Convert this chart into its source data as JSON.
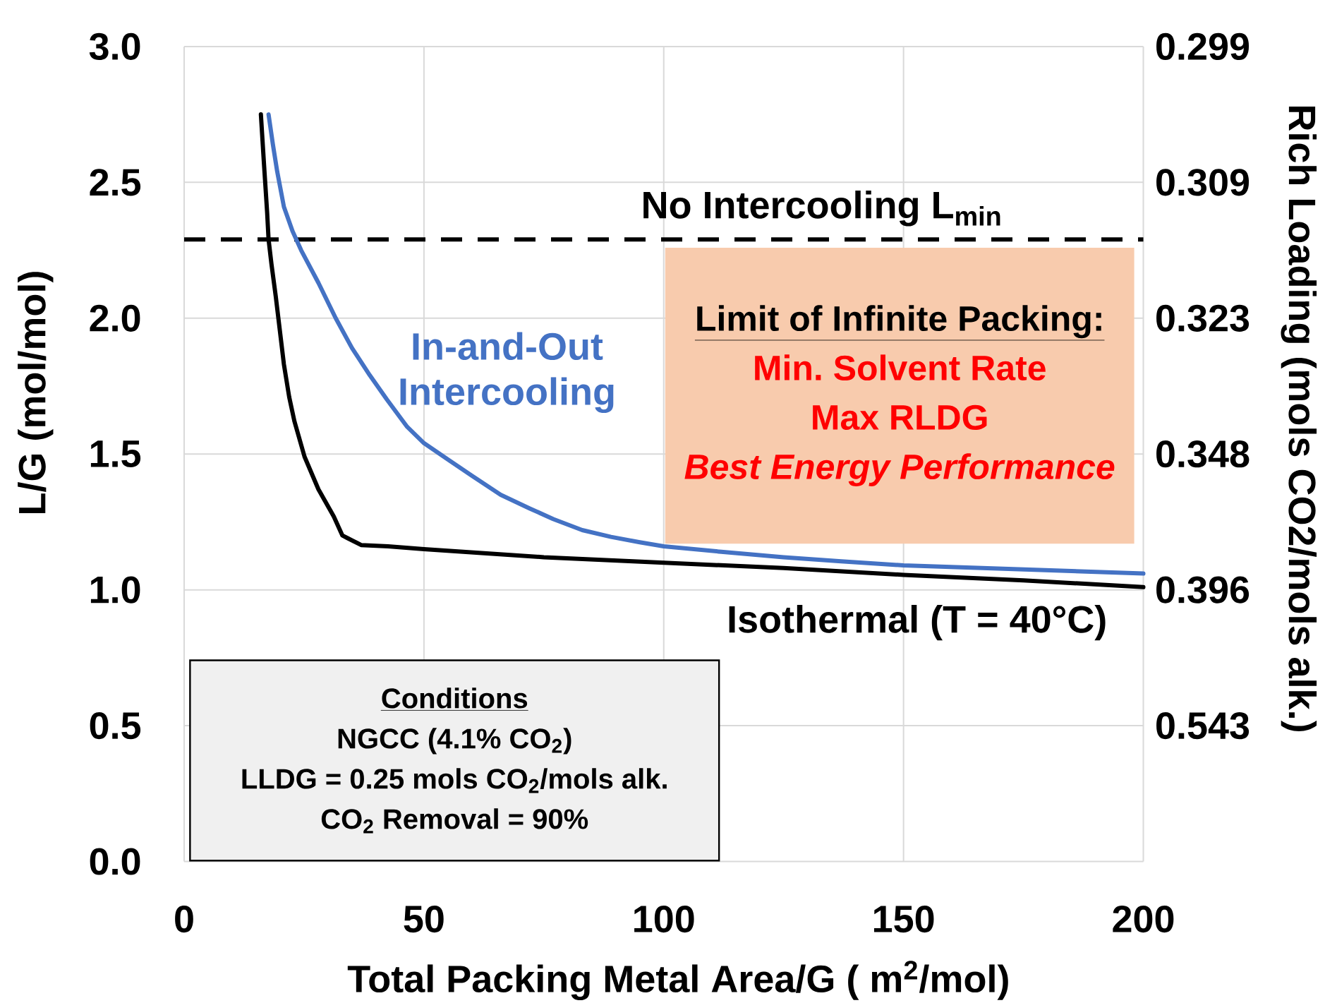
{
  "chart_data": {
    "type": "line",
    "xlabel": "Total Packing Metal Area/G ( m$^{2}$/mol)",
    "ylabel": "L/G (mol/mol)",
    "y2label": "Rich Loading (mols CO2/mols alk.)",
    "annotations": [
      "Conditions",
      "NGCC (4.1% CO$_{2}$)",
      "LLDG = 0.25 mols CO$_{2}$/mols alk.",
      "CO$_{2}$ Removal = 90%",
      "Limit of Infinite Packing:",
      "Min. Solvent Rate",
      "Max RLDG",
      "Best Energy Performance"
    ],
    "series": [
      {
        "name": "Isothermal (T = 40°C)",
        "color": "#000000",
        "x": [
          16.0,
          16.6,
          17.3,
          17.6,
          18.2,
          19.1,
          20.8,
          21.9,
          23.0,
          25.1,
          28.0,
          31.2,
          33.0,
          34.1,
          36.9,
          42.5,
          50,
          75,
          100,
          125,
          150,
          175,
          200
        ],
        "values": [
          2.75,
          2.58,
          2.39,
          2.29,
          2.2,
          2.08,
          1.83,
          1.71,
          1.62,
          1.49,
          1.37,
          1.27,
          1.2,
          1.19,
          1.165,
          1.16,
          1.15,
          1.12,
          1.1,
          1.08,
          1.055,
          1.035,
          1.01
        ]
      },
      {
        "name": "In-and-Out Intercooling",
        "color": "#4472c4",
        "x": [
          17.6,
          18.5,
          19.4,
          20.8,
          22.6,
          24.4,
          28.0,
          31.6,
          35.0,
          38.7,
          42.3,
          46.5,
          50,
          55,
          60,
          66,
          72,
          77,
          83,
          89,
          95,
          100,
          112,
          125,
          137,
          150,
          175,
          200
        ],
        "values": [
          2.75,
          2.64,
          2.54,
          2.41,
          2.32,
          2.25,
          2.13,
          2.0,
          1.89,
          1.79,
          1.7,
          1.6,
          1.54,
          1.48,
          1.42,
          1.35,
          1.3,
          1.26,
          1.22,
          1.195,
          1.175,
          1.16,
          1.14,
          1.12,
          1.105,
          1.09,
          1.075,
          1.06
        ]
      }
    ],
    "xlim": [
      0,
      200
    ],
    "xticks": [
      0,
      50,
      100,
      150,
      200
    ],
    "ylim": [
      0,
      3
    ],
    "yticks": [
      {
        "value": 0,
        "label": "0.0"
      },
      0.5,
      {
        "value": 1,
        "label": "1.0"
      },
      1.5,
      {
        "value": 2,
        "label": "2.0"
      },
      2.5,
      {
        "value": 3,
        "label": "3.0"
      }
    ],
    "y2_categories": [
      "0.299",
      "0.309",
      "0.323",
      "0.348",
      "0.396",
      "0.543",
      null
    ],
    "ref_lines": [
      {
        "axis": "y",
        "value": 2.29,
        "label": "No Intercooling L$_{min}$",
        "color": "#000000",
        "line_style": "dashed"
      }
    ],
    "grid": true
  }
}
